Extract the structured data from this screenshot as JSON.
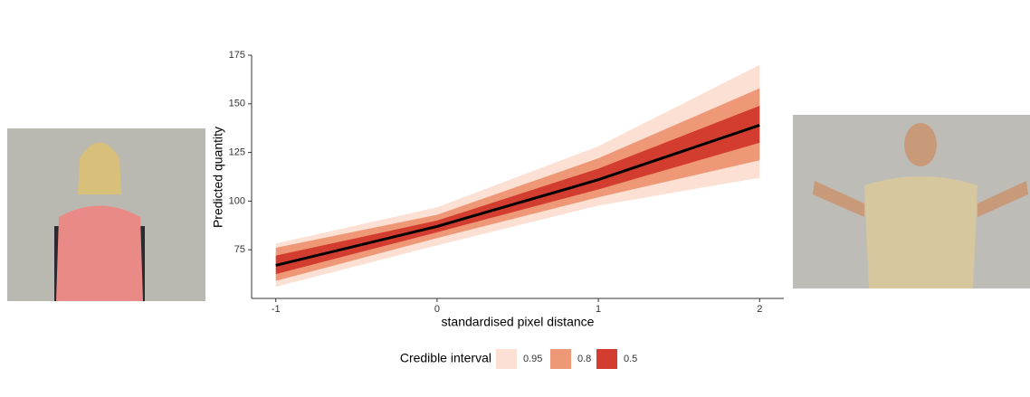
{
  "chart_data": {
    "type": "ribbon",
    "x_label": "standardised pixel distance",
    "y_label": "Predicted quantity",
    "x": [
      -1,
      0,
      1,
      2
    ],
    "xlim": [
      -1.15,
      2.15
    ],
    "ylim": [
      50,
      175
    ],
    "xticks": [
      -1,
      0,
      1,
      2
    ],
    "yticks": [
      75,
      100,
      125,
      150,
      175
    ],
    "legend_title": "Credible interval",
    "legend": "bottom",
    "bands": [
      {
        "name": "0.95",
        "color": "#fbe0d3",
        "lower": [
          56,
          77.3,
          97.7,
          112
        ],
        "upper": [
          78.2,
          96.8,
          128.2,
          170
        ]
      },
      {
        "name": "0.8",
        "color": "#ef9878",
        "lower": [
          59,
          81,
          102,
          121
        ],
        "upper": [
          76,
          93,
          122,
          158
        ]
      },
      {
        "name": "0.5",
        "color": "#d33d2f",
        "lower": [
          62.5,
          84,
          106,
          130
        ],
        "upper": [
          72,
          90,
          116.7,
          149
        ]
      }
    ],
    "line": {
      "color": "#000000",
      "values": [
        67,
        87,
        111,
        139
      ]
    }
  }
}
